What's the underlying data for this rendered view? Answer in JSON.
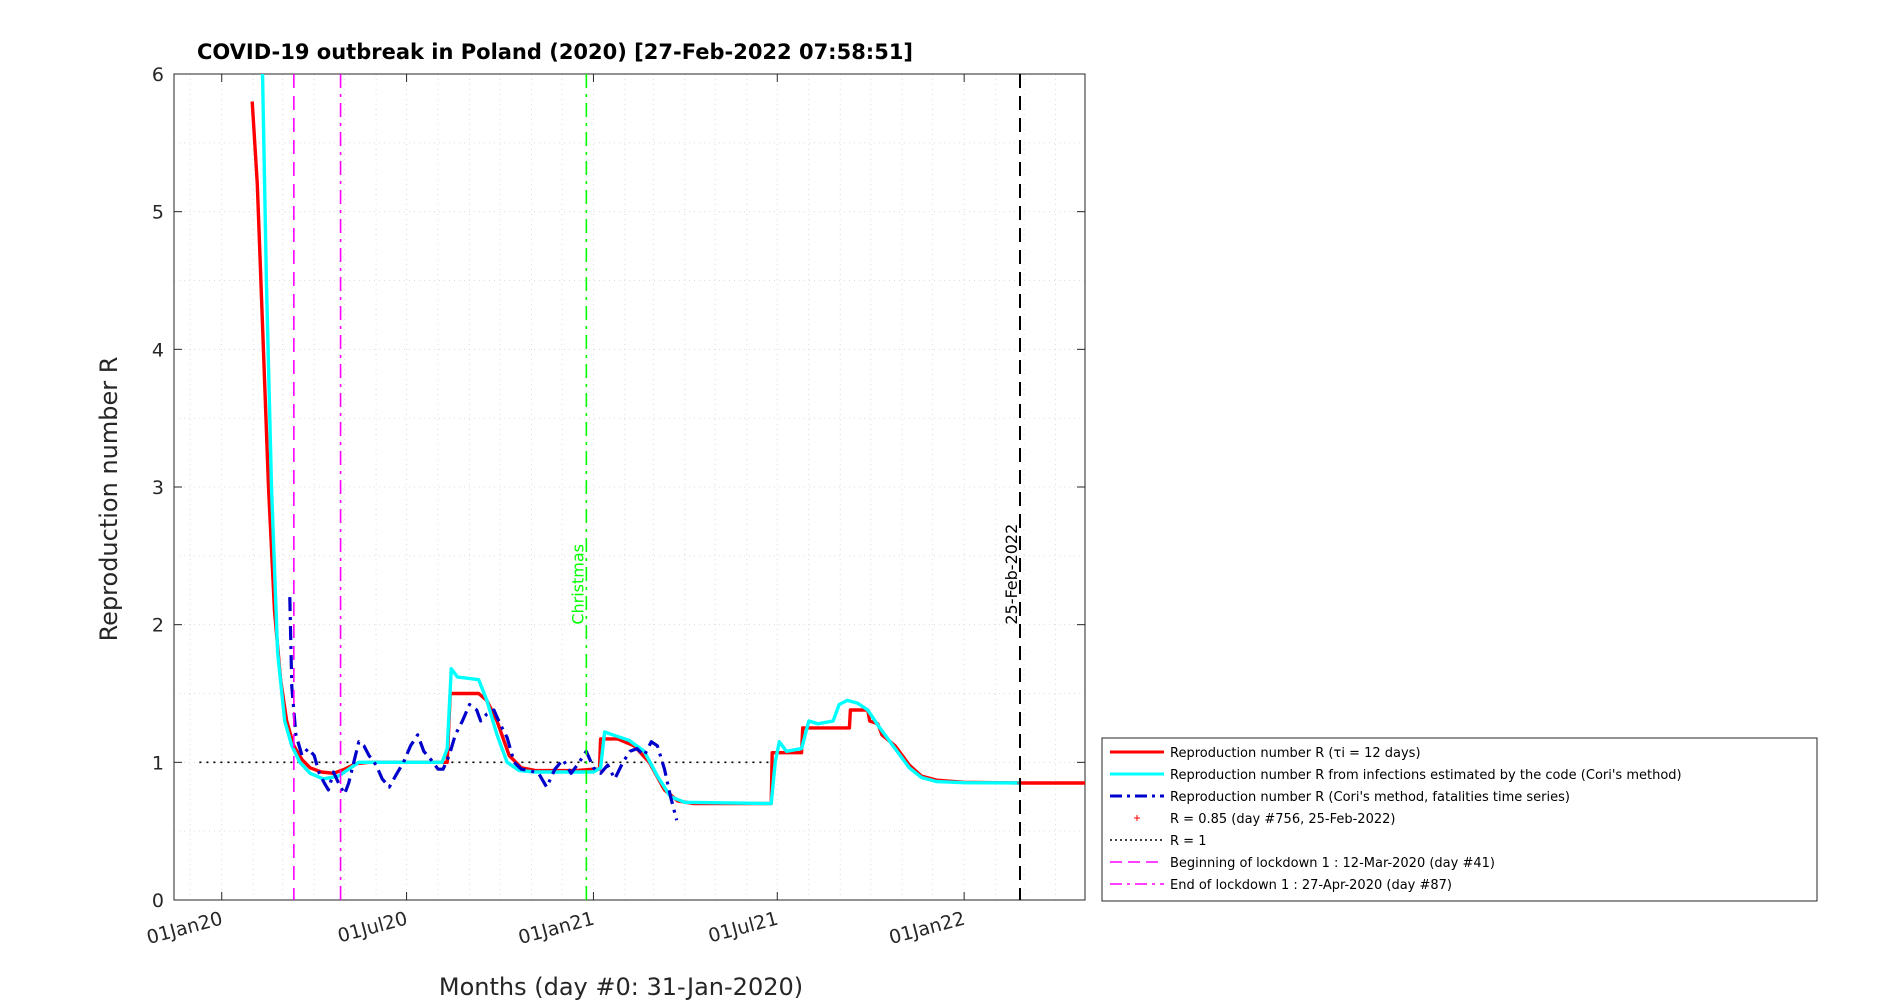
{
  "chart_data": {
    "type": "line",
    "title": "COVID-19 outbreak in Poland (2020) [27-Feb-2022 07:58:51]",
    "xlabel": "Months (day #0: 31-Jan-2020)",
    "ylabel": "Reproduction number R",
    "x_axis": "date",
    "xlim": [
      "2019-11-15",
      "2022-04-30"
    ],
    "ylim": [
      0,
      6
    ],
    "yticks": [
      0,
      1,
      2,
      3,
      4,
      5,
      6
    ],
    "xticks": [
      {
        "date": "2020-01-01",
        "label": "01Jan20"
      },
      {
        "date": "2020-07-01",
        "label": "01Jul20"
      },
      {
        "date": "2021-01-01",
        "label": "01Jan21"
      },
      {
        "date": "2021-07-01",
        "label": "01Jul21"
      },
      {
        "date": "2022-01-01",
        "label": "01Jan22"
      }
    ],
    "grid": true,
    "legend_position": "right",
    "series": [
      {
        "name": "Reproduction number R (τi = 12 days)",
        "color": "#ff0000",
        "style": "solid",
        "points": [
          [
            "2020-01-31",
            5.8
          ],
          [
            "2020-02-05",
            5.2
          ],
          [
            "2020-02-10",
            4.2
          ],
          [
            "2020-02-16",
            3.0
          ],
          [
            "2020-02-22",
            2.1
          ],
          [
            "2020-02-28",
            1.6
          ],
          [
            "2020-03-05",
            1.3
          ],
          [
            "2020-03-12",
            1.12
          ],
          [
            "2020-03-20",
            1.02
          ],
          [
            "2020-03-28",
            0.96
          ],
          [
            "2020-04-08",
            0.93
          ],
          [
            "2020-04-20",
            0.92
          ],
          [
            "2020-05-01",
            0.95
          ],
          [
            "2020-05-12",
            0.99
          ],
          [
            "2020-05-25",
            1.0
          ],
          [
            "2020-07-01",
            1.0
          ],
          [
            "2020-08-10",
            1.0
          ],
          [
            "2020-08-13",
            1.5
          ],
          [
            "2020-09-10",
            1.5
          ],
          [
            "2020-09-18",
            1.45
          ],
          [
            "2020-09-28",
            1.3
          ],
          [
            "2020-10-10",
            1.05
          ],
          [
            "2020-10-22",
            0.96
          ],
          [
            "2020-11-05",
            0.94
          ],
          [
            "2020-12-15",
            0.94
          ],
          [
            "2021-01-01",
            0.95
          ],
          [
            "2021-01-07",
            0.95
          ],
          [
            "2021-01-08",
            1.17
          ],
          [
            "2021-01-25",
            1.17
          ],
          [
            "2021-02-10",
            1.12
          ],
          [
            "2021-02-25",
            1.0
          ],
          [
            "2021-03-12",
            0.8
          ],
          [
            "2021-03-25",
            0.72
          ],
          [
            "2021-04-10",
            0.7
          ],
          [
            "2021-06-25",
            0.7
          ],
          [
            "2021-06-26",
            1.07
          ],
          [
            "2021-07-25",
            1.07
          ],
          [
            "2021-07-26",
            1.25
          ],
          [
            "2021-09-10",
            1.25
          ],
          [
            "2021-09-11",
            1.38
          ],
          [
            "2021-09-28",
            1.38
          ],
          [
            "2021-09-30",
            1.3
          ],
          [
            "2021-10-08",
            1.28
          ],
          [
            "2021-10-12",
            1.2
          ],
          [
            "2021-10-25",
            1.12
          ],
          [
            "2021-11-08",
            0.98
          ],
          [
            "2021-11-20",
            0.9
          ],
          [
            "2021-12-05",
            0.87
          ],
          [
            "2022-01-01",
            0.855
          ],
          [
            "2022-02-25",
            0.85
          ],
          [
            "2022-04-30",
            0.85
          ]
        ]
      },
      {
        "name": "Reproduction number R from infections estimated by the code (Cori's method)",
        "color": "#00ffff",
        "style": "solid",
        "points": [
          [
            "2020-02-10",
            6.05
          ],
          [
            "2020-02-14",
            4.5
          ],
          [
            "2020-02-19",
            3.0
          ],
          [
            "2020-02-25",
            1.8
          ],
          [
            "2020-03-03",
            1.3
          ],
          [
            "2020-03-10",
            1.12
          ],
          [
            "2020-03-18",
            1.0
          ],
          [
            "2020-03-28",
            0.92
          ],
          [
            "2020-04-10",
            0.88
          ],
          [
            "2020-04-25",
            0.9
          ],
          [
            "2020-05-05",
            0.95
          ],
          [
            "2020-05-15",
            1.0
          ],
          [
            "2020-06-01",
            1.0
          ],
          [
            "2020-08-05",
            1.0
          ],
          [
            "2020-08-10",
            1.1
          ],
          [
            "2020-08-14",
            1.68
          ],
          [
            "2020-08-20",
            1.62
          ],
          [
            "2020-09-10",
            1.6
          ],
          [
            "2020-09-18",
            1.45
          ],
          [
            "2020-09-28",
            1.2
          ],
          [
            "2020-10-08",
            1.0
          ],
          [
            "2020-10-20",
            0.94
          ],
          [
            "2020-11-05",
            0.93
          ],
          [
            "2020-12-15",
            0.93
          ],
          [
            "2021-01-01",
            0.93
          ],
          [
            "2021-01-08",
            0.96
          ],
          [
            "2021-01-12",
            1.22
          ],
          [
            "2021-01-20",
            1.2
          ],
          [
            "2021-02-05",
            1.16
          ],
          [
            "2021-02-20",
            1.08
          ],
          [
            "2021-03-05",
            0.9
          ],
          [
            "2021-03-18",
            0.75
          ],
          [
            "2021-04-01",
            0.71
          ],
          [
            "2021-06-25",
            0.7
          ],
          [
            "2021-06-29",
            1.0
          ],
          [
            "2021-07-03",
            1.15
          ],
          [
            "2021-07-10",
            1.08
          ],
          [
            "2021-07-25",
            1.1
          ],
          [
            "2021-08-01",
            1.3
          ],
          [
            "2021-08-10",
            1.28
          ],
          [
            "2021-08-25",
            1.3
          ],
          [
            "2021-08-31",
            1.42
          ],
          [
            "2021-09-08",
            1.45
          ],
          [
            "2021-09-18",
            1.43
          ],
          [
            "2021-09-28",
            1.38
          ],
          [
            "2021-10-10",
            1.25
          ],
          [
            "2021-10-25",
            1.1
          ],
          [
            "2021-11-08",
            0.96
          ],
          [
            "2021-11-20",
            0.89
          ],
          [
            "2021-12-05",
            0.86
          ],
          [
            "2022-01-01",
            0.852
          ],
          [
            "2022-02-25",
            0.85
          ]
        ]
      },
      {
        "name": "Reproduction number R (Cori's method, fatalities time series)",
        "color": "#0000cc",
        "style": "dashdot",
        "points": [
          [
            "2020-03-08",
            2.2
          ],
          [
            "2020-03-10",
            1.55
          ],
          [
            "2020-03-14",
            1.2
          ],
          [
            "2020-03-20",
            1.05
          ],
          [
            "2020-03-26",
            1.1
          ],
          [
            "2020-04-01",
            1.05
          ],
          [
            "2020-04-06",
            0.92
          ],
          [
            "2020-04-11",
            0.85
          ],
          [
            "2020-04-15",
            0.8
          ],
          [
            "2020-04-20",
            0.93
          ],
          [
            "2020-04-25",
            0.85
          ],
          [
            "2020-05-01",
            0.77
          ],
          [
            "2020-05-05",
            0.85
          ],
          [
            "2020-05-10",
            1.0
          ],
          [
            "2020-05-15",
            1.15
          ],
          [
            "2020-05-20",
            1.12
          ],
          [
            "2020-05-25",
            1.05
          ],
          [
            "2020-06-01",
            0.98
          ],
          [
            "2020-06-07",
            0.88
          ],
          [
            "2020-06-14",
            0.82
          ],
          [
            "2020-06-20",
            0.9
          ],
          [
            "2020-06-28",
            1.0
          ],
          [
            "2020-07-05",
            1.12
          ],
          [
            "2020-07-12",
            1.2
          ],
          [
            "2020-07-18",
            1.08
          ],
          [
            "2020-07-25",
            1.02
          ],
          [
            "2020-08-01",
            0.95
          ],
          [
            "2020-08-06",
            0.95
          ],
          [
            "2020-08-12",
            1.05
          ],
          [
            "2020-08-18",
            1.2
          ],
          [
            "2020-08-25",
            1.3
          ],
          [
            "2020-09-01",
            1.42
          ],
          [
            "2020-09-08",
            1.38
          ],
          [
            "2020-09-12",
            1.3
          ],
          [
            "2020-09-18",
            1.35
          ],
          [
            "2020-09-25",
            1.38
          ],
          [
            "2020-10-01",
            1.28
          ],
          [
            "2020-10-08",
            1.18
          ],
          [
            "2020-10-15",
            1.0
          ],
          [
            "2020-10-22",
            0.95
          ],
          [
            "2020-10-30",
            0.94
          ],
          [
            "2020-11-08",
            0.92
          ],
          [
            "2020-11-16",
            0.82
          ],
          [
            "2020-11-24",
            0.95
          ],
          [
            "2020-12-02",
            1.02
          ],
          [
            "2020-12-10",
            0.92
          ],
          [
            "2020-12-18",
            1.0
          ],
          [
            "2020-12-25",
            1.08
          ],
          [
            "2021-01-01",
            0.96
          ],
          [
            "2021-01-08",
            0.92
          ],
          [
            "2021-01-15",
            0.98
          ],
          [
            "2021-01-22",
            0.88
          ],
          [
            "2021-01-30",
            1.0
          ],
          [
            "2021-02-06",
            1.08
          ],
          [
            "2021-02-13",
            1.1
          ],
          [
            "2021-02-20",
            1.05
          ],
          [
            "2021-02-27",
            1.15
          ],
          [
            "2021-03-05",
            1.12
          ],
          [
            "2021-03-12",
            0.95
          ],
          [
            "2021-03-18",
            0.75
          ],
          [
            "2021-03-24",
            0.58
          ]
        ]
      },
      {
        "name": "R = 0.85 (day #756, 25-Feb-2022)",
        "color": "#ff0000",
        "style": "marker",
        "points": [
          [
            "2022-02-25",
            0.85
          ]
        ]
      },
      {
        "name": "R = 1",
        "color": "#000000",
        "style": "dotted",
        "points": [
          [
            "2019-12-10",
            1
          ],
          [
            "2021-07-01",
            1
          ]
        ]
      }
    ],
    "vlines": [
      {
        "date": "2020-03-12",
        "color": "#ff00ff",
        "style": "dashed",
        "label": ""
      },
      {
        "date": "2020-04-27",
        "color": "#ff00ff",
        "style": "dashdot",
        "label": ""
      },
      {
        "date": "2020-12-25",
        "color": "#00ff00",
        "style": "dashdot",
        "label": "Christmas"
      },
      {
        "date": "2022-02-25",
        "color": "#000000",
        "style": "dashed",
        "label": "25-Feb-2022"
      }
    ]
  },
  "legend": {
    "items": [
      {
        "type": "solid",
        "color": "#ff0000",
        "width": 3,
        "text": "Reproduction number R (τi = 12 days)"
      },
      {
        "type": "solid",
        "color": "#00ffff",
        "width": 3,
        "text": "Reproduction number R from infections estimated by the code (Cori's method)"
      },
      {
        "type": "dashdot",
        "color": "#0000cc",
        "width": 3,
        "text": "Reproduction number R (Cori's method, fatalities time series)"
      },
      {
        "type": "marker",
        "color": "#ff0000",
        "width": 1,
        "text": "R = 0.85 (day #756, 25-Feb-2022)"
      },
      {
        "type": "dotted",
        "color": "#000000",
        "width": 1.5,
        "text": "R = 1"
      },
      {
        "type": "dashed",
        "color": "#ff00ff",
        "width": 1.5,
        "text": "Beginning of lockdown 1 : 12-Mar-2020 (day #41)"
      },
      {
        "type": "dashdot",
        "color": "#ff00ff",
        "width": 1.5,
        "text": "End of lockdown 1 : 27-Apr-2020 (day #87)"
      }
    ]
  }
}
